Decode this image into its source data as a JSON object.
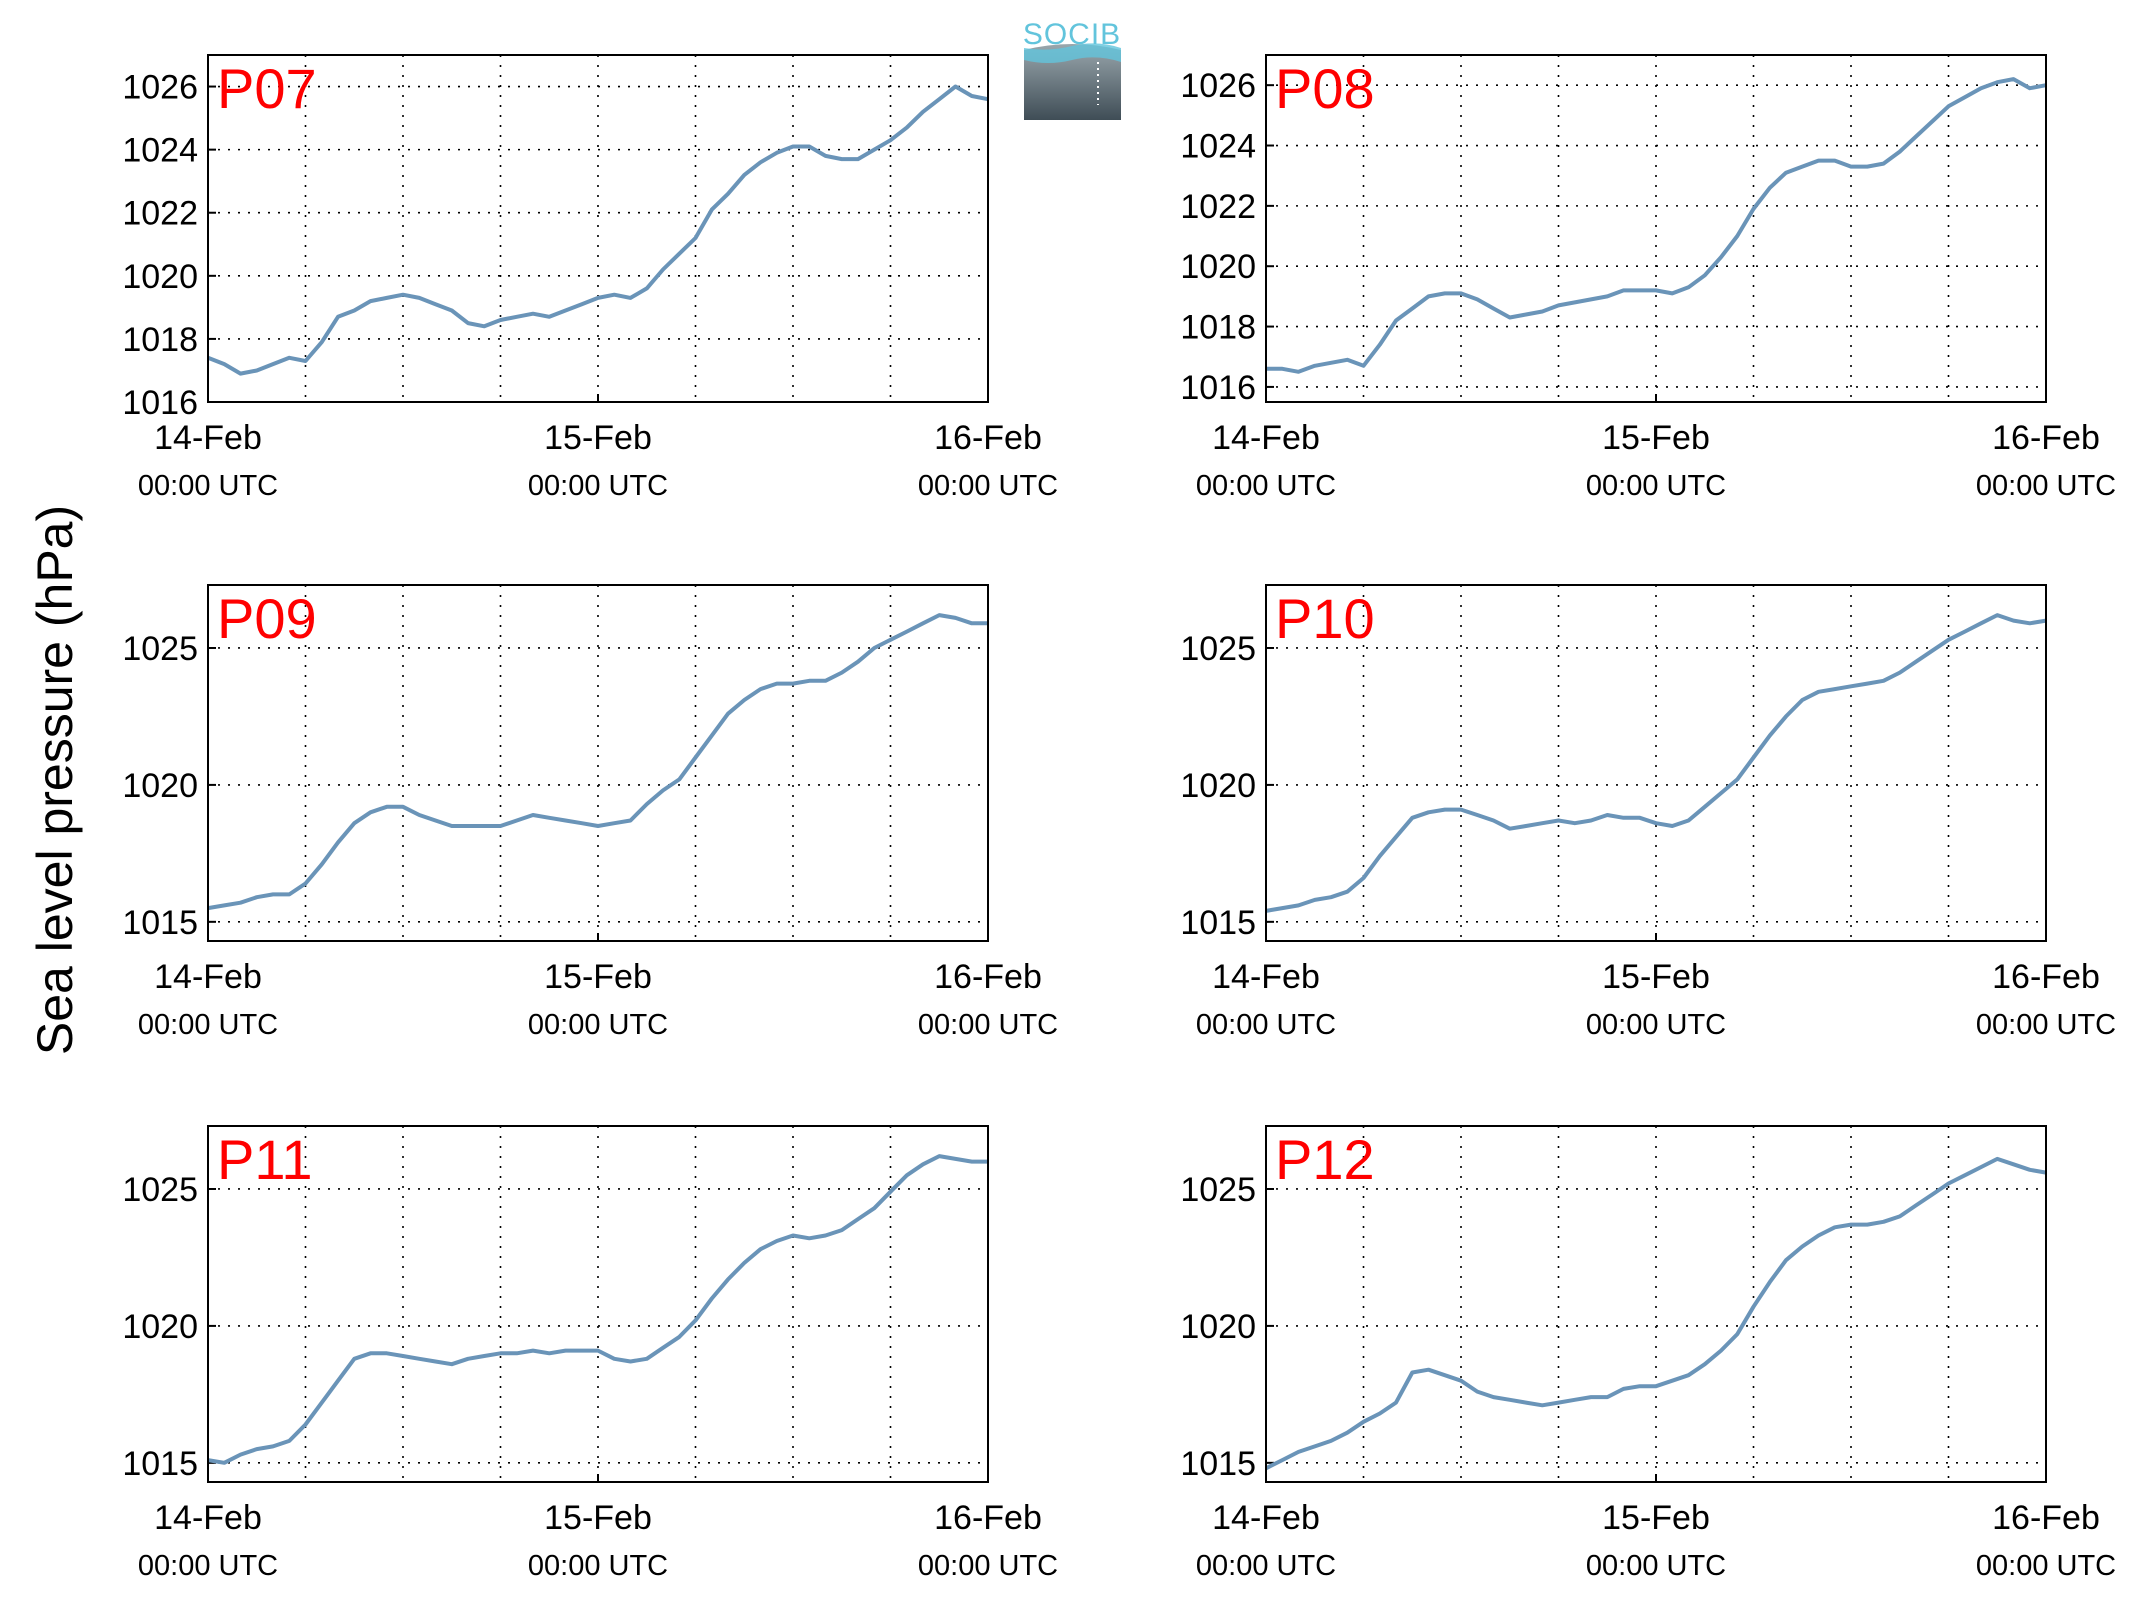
{
  "figure": {
    "ylabel": "Sea level pressure (hPa)",
    "logo_text": "SOCIB",
    "x_tick_dates": [
      "14-Feb",
      "15-Feb",
      "16-Feb"
    ],
    "x_tick_times": [
      "00:00 UTC",
      "00:00 UTC",
      "00:00 UTC"
    ],
    "line_color": "#6a94b8",
    "label_color": "#ff0000"
  },
  "chart_data": [
    {
      "type": "line",
      "name": "P07",
      "xlim": [
        0,
        48
      ],
      "ylim": [
        1016,
        1027
      ],
      "yticks": [
        1016,
        1018,
        1020,
        1022,
        1024,
        1026
      ],
      "x_hours": [
        0,
        1,
        2,
        3,
        4,
        5,
        6,
        7,
        8,
        9,
        10,
        11,
        12,
        13,
        14,
        15,
        16,
        17,
        18,
        19,
        20,
        21,
        22,
        23,
        24,
        25,
        26,
        27,
        28,
        29,
        30,
        31,
        32,
        33,
        34,
        35,
        36,
        37,
        38,
        39,
        40,
        41,
        42,
        43,
        44,
        45,
        46,
        47,
        48
      ],
      "values": [
        1017.4,
        1017.2,
        1016.9,
        1017.0,
        1017.2,
        1017.4,
        1017.3,
        1017.9,
        1018.7,
        1018.9,
        1019.2,
        1019.3,
        1019.4,
        1019.3,
        1019.1,
        1018.9,
        1018.5,
        1018.4,
        1018.6,
        1018.7,
        1018.8,
        1018.7,
        1018.9,
        1019.1,
        1019.3,
        1019.4,
        1019.3,
        1019.6,
        1020.2,
        1020.7,
        1021.2,
        1022.1,
        1022.6,
        1023.2,
        1023.6,
        1023.9,
        1024.1,
        1024.1,
        1023.8,
        1023.7,
        1023.7,
        1024.0,
        1024.3,
        1024.7,
        1025.2,
        1025.6,
        1026.0,
        1025.7,
        1025.6
      ]
    },
    {
      "type": "line",
      "name": "P08",
      "xlim": [
        0,
        48
      ],
      "ylim": [
        1015.5,
        1027
      ],
      "yticks": [
        1016,
        1018,
        1020,
        1022,
        1024,
        1026
      ],
      "x_hours": [
        0,
        1,
        2,
        3,
        4,
        5,
        6,
        7,
        8,
        9,
        10,
        11,
        12,
        13,
        14,
        15,
        16,
        17,
        18,
        19,
        20,
        21,
        22,
        23,
        24,
        25,
        26,
        27,
        28,
        29,
        30,
        31,
        32,
        33,
        34,
        35,
        36,
        37,
        38,
        39,
        40,
        41,
        42,
        43,
        44,
        45,
        46,
        47,
        48
      ],
      "values": [
        1016.6,
        1016.6,
        1016.5,
        1016.7,
        1016.8,
        1016.9,
        1016.7,
        1017.4,
        1018.2,
        1018.6,
        1019.0,
        1019.1,
        1019.1,
        1018.9,
        1018.6,
        1018.3,
        1018.4,
        1018.5,
        1018.7,
        1018.8,
        1018.9,
        1019.0,
        1019.2,
        1019.2,
        1019.2,
        1019.1,
        1019.3,
        1019.7,
        1020.3,
        1021.0,
        1021.9,
        1022.6,
        1023.1,
        1023.3,
        1023.5,
        1023.5,
        1023.3,
        1023.3,
        1023.4,
        1023.8,
        1024.3,
        1024.8,
        1025.3,
        1025.6,
        1025.9,
        1026.1,
        1026.2,
        1025.9,
        1026.0
      ]
    },
    {
      "type": "line",
      "name": "P09",
      "xlim": [
        0,
        48
      ],
      "ylim": [
        1014.3,
        1027.3
      ],
      "yticks": [
        1015,
        1020,
        1025
      ],
      "x_hours": [
        0,
        1,
        2,
        3,
        4,
        5,
        6,
        7,
        8,
        9,
        10,
        11,
        12,
        13,
        14,
        15,
        16,
        17,
        18,
        19,
        20,
        21,
        22,
        23,
        24,
        25,
        26,
        27,
        28,
        29,
        30,
        31,
        32,
        33,
        34,
        35,
        36,
        37,
        38,
        39,
        40,
        41,
        42,
        43,
        44,
        45,
        46,
        47,
        48
      ],
      "values": [
        1015.5,
        1015.6,
        1015.7,
        1015.9,
        1016.0,
        1016.0,
        1016.4,
        1017.1,
        1017.9,
        1018.6,
        1019.0,
        1019.2,
        1019.2,
        1018.9,
        1018.7,
        1018.5,
        1018.5,
        1018.5,
        1018.5,
        1018.7,
        1018.9,
        1018.8,
        1018.7,
        1018.6,
        1018.5,
        1018.6,
        1018.7,
        1019.3,
        1019.8,
        1020.2,
        1021.0,
        1021.8,
        1022.6,
        1023.1,
        1023.5,
        1023.7,
        1023.7,
        1023.8,
        1023.8,
        1024.1,
        1024.5,
        1025.0,
        1025.3,
        1025.6,
        1025.9,
        1026.2,
        1026.1,
        1025.9,
        1025.9
      ]
    },
    {
      "type": "line",
      "name": "P10",
      "xlim": [
        0,
        48
      ],
      "ylim": [
        1014.3,
        1027.3
      ],
      "yticks": [
        1015,
        1020,
        1025
      ],
      "x_hours": [
        0,
        1,
        2,
        3,
        4,
        5,
        6,
        7,
        8,
        9,
        10,
        11,
        12,
        13,
        14,
        15,
        16,
        17,
        18,
        19,
        20,
        21,
        22,
        23,
        24,
        25,
        26,
        27,
        28,
        29,
        30,
        31,
        32,
        33,
        34,
        35,
        36,
        37,
        38,
        39,
        40,
        41,
        42,
        43,
        44,
        45,
        46,
        47,
        48
      ],
      "values": [
        1015.4,
        1015.5,
        1015.6,
        1015.8,
        1015.9,
        1016.1,
        1016.6,
        1017.4,
        1018.1,
        1018.8,
        1019.0,
        1019.1,
        1019.1,
        1018.9,
        1018.7,
        1018.4,
        1018.5,
        1018.6,
        1018.7,
        1018.6,
        1018.7,
        1018.9,
        1018.8,
        1018.8,
        1018.6,
        1018.5,
        1018.7,
        1019.2,
        1019.7,
        1020.2,
        1021.0,
        1021.8,
        1022.5,
        1023.1,
        1023.4,
        1023.5,
        1023.6,
        1023.7,
        1023.8,
        1024.1,
        1024.5,
        1024.9,
        1025.3,
        1025.6,
        1025.9,
        1026.2,
        1026.0,
        1025.9,
        1026.0
      ]
    },
    {
      "type": "line",
      "name": "P11",
      "xlim": [
        0,
        48
      ],
      "ylim": [
        1014.3,
        1027.3
      ],
      "yticks": [
        1015,
        1020,
        1025
      ],
      "x_hours": [
        0,
        1,
        2,
        3,
        4,
        5,
        6,
        7,
        8,
        9,
        10,
        11,
        12,
        13,
        14,
        15,
        16,
        17,
        18,
        19,
        20,
        21,
        22,
        23,
        24,
        25,
        26,
        27,
        28,
        29,
        30,
        31,
        32,
        33,
        34,
        35,
        36,
        37,
        38,
        39,
        40,
        41,
        42,
        43,
        44,
        45,
        46,
        47,
        48
      ],
      "values": [
        1015.1,
        1015.0,
        1015.3,
        1015.5,
        1015.6,
        1015.8,
        1016.4,
        1017.2,
        1018.0,
        1018.8,
        1019.0,
        1019.0,
        1018.9,
        1018.8,
        1018.7,
        1018.6,
        1018.8,
        1018.9,
        1019.0,
        1019.0,
        1019.1,
        1019.0,
        1019.1,
        1019.1,
        1019.1,
        1018.8,
        1018.7,
        1018.8,
        1019.2,
        1019.6,
        1020.2,
        1021.0,
        1021.7,
        1022.3,
        1022.8,
        1023.1,
        1023.3,
        1023.2,
        1023.3,
        1023.5,
        1023.9,
        1024.3,
        1024.9,
        1025.5,
        1025.9,
        1026.2,
        1026.1,
        1026.0,
        1026.0
      ]
    },
    {
      "type": "line",
      "name": "P12",
      "xlim": [
        0,
        48
      ],
      "ylim": [
        1014.3,
        1027.3
      ],
      "yticks": [
        1015,
        1020,
        1025
      ],
      "x_hours": [
        0,
        1,
        2,
        3,
        4,
        5,
        6,
        7,
        8,
        9,
        10,
        11,
        12,
        13,
        14,
        15,
        16,
        17,
        18,
        19,
        20,
        21,
        22,
        23,
        24,
        25,
        26,
        27,
        28,
        29,
        30,
        31,
        32,
        33,
        34,
        35,
        36,
        37,
        38,
        39,
        40,
        41,
        42,
        43,
        44,
        45,
        46,
        47,
        48
      ],
      "values": [
        1014.8,
        1015.1,
        1015.4,
        1015.6,
        1015.8,
        1016.1,
        1016.5,
        1016.8,
        1017.2,
        1018.3,
        1018.4,
        1018.2,
        1018.0,
        1017.6,
        1017.4,
        1017.3,
        1017.2,
        1017.1,
        1017.2,
        1017.3,
        1017.4,
        1017.4,
        1017.7,
        1017.8,
        1017.8,
        1018.0,
        1018.2,
        1018.6,
        1019.1,
        1019.7,
        1020.7,
        1021.6,
        1022.4,
        1022.9,
        1023.3,
        1023.6,
        1023.7,
        1023.7,
        1023.8,
        1024.0,
        1024.4,
        1024.8,
        1025.2,
        1025.5,
        1025.8,
        1026.1,
        1025.9,
        1025.7,
        1025.6
      ]
    }
  ]
}
